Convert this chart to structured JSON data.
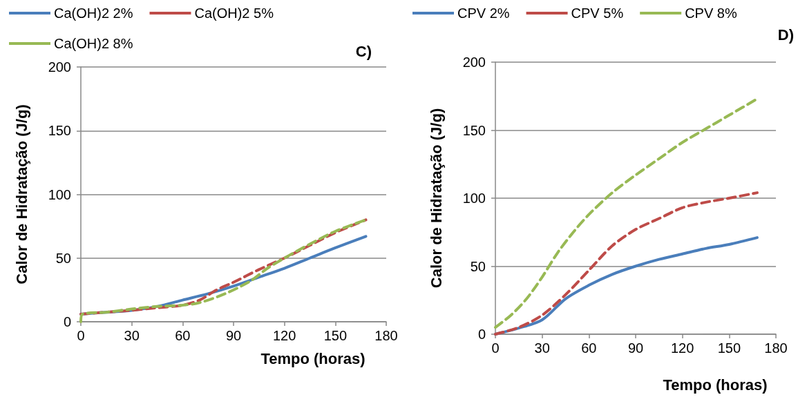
{
  "chart_data": [
    {
      "type": "line",
      "title": "C)",
      "xlabel": "Tempo (horas)",
      "ylabel": "Calor de Hidratação (J/g)",
      "xlim": [
        0,
        180
      ],
      "xticks": [
        0,
        30,
        60,
        90,
        120,
        150,
        180
      ],
      "ylim": [
        0,
        200
      ],
      "yticks": [
        0,
        50,
        100,
        150,
        200
      ],
      "grid": "y",
      "legend": "top",
      "series": [
        {
          "name": "Ca(OH)2 2%",
          "color": "#4a7ebb",
          "line_style": "solid",
          "x": [
            0,
            15,
            30,
            45,
            60,
            75,
            90,
            105,
            120,
            135,
            150,
            168
          ],
          "values": [
            6,
            7.5,
            9,
            12,
            17,
            22,
            28,
            35,
            42,
            50,
            58,
            67
          ]
        },
        {
          "name": "Ca(OH)2 5%",
          "color": "#be4b48",
          "line_style": "dashed",
          "x": [
            0,
            15,
            30,
            45,
            60,
            70,
            80,
            90,
            105,
            120,
            135,
            150,
            168
          ],
          "values": [
            6,
            7.5,
            9,
            11,
            13,
            17,
            25,
            31,
            41,
            50,
            60,
            70,
            80
          ]
        },
        {
          "name": "Ca(OH)2 8%",
          "color": "#98b954",
          "line_style": "dashed",
          "x": [
            0,
            1,
            15,
            30,
            45,
            60,
            70,
            85,
            100,
            110,
            120,
            135,
            150,
            168
          ],
          "values": [
            0,
            6,
            7.5,
            10,
            12,
            13,
            15,
            22,
            32,
            42,
            50,
            61,
            71,
            80
          ]
        }
      ]
    },
    {
      "type": "line",
      "title": "D)",
      "xlabel": "Tempo (horas)",
      "ylabel": "Calor de Hidratação (J/g)",
      "xlim": [
        0,
        180
      ],
      "xticks": [
        0,
        30,
        60,
        90,
        120,
        150,
        180
      ],
      "ylim": [
        0,
        200
      ],
      "yticks": [
        0,
        50,
        100,
        150,
        200
      ],
      "grid": "y",
      "legend": "top",
      "series": [
        {
          "name": "CPV 2%",
          "color": "#4a7ebb",
          "line_style": "solid",
          "x": [
            0,
            15,
            30,
            45,
            60,
            75,
            90,
            105,
            120,
            135,
            150,
            168
          ],
          "values": [
            0,
            4.5,
            10.5,
            26,
            36,
            44,
            50,
            55,
            59,
            63,
            66,
            71
          ]
        },
        {
          "name": "CPV 5%",
          "color": "#be4b48",
          "line_style": "dashed",
          "x": [
            0,
            15,
            30,
            45,
            60,
            75,
            90,
            105,
            120,
            135,
            150,
            168
          ],
          "values": [
            0,
            5,
            14,
            29,
            47,
            65,
            77,
            85,
            93,
            97,
            100,
            104
          ]
        },
        {
          "name": "CPV 8%",
          "color": "#98b954",
          "line_style": "dashed",
          "x": [
            0,
            10,
            20,
            30,
            40,
            50,
            60,
            75,
            90,
            105,
            120,
            135,
            150,
            168
          ],
          "values": [
            5,
            14,
            26,
            42,
            60,
            75,
            88,
            104,
            117,
            129,
            141,
            151,
            161,
            173
          ]
        }
      ]
    }
  ]
}
